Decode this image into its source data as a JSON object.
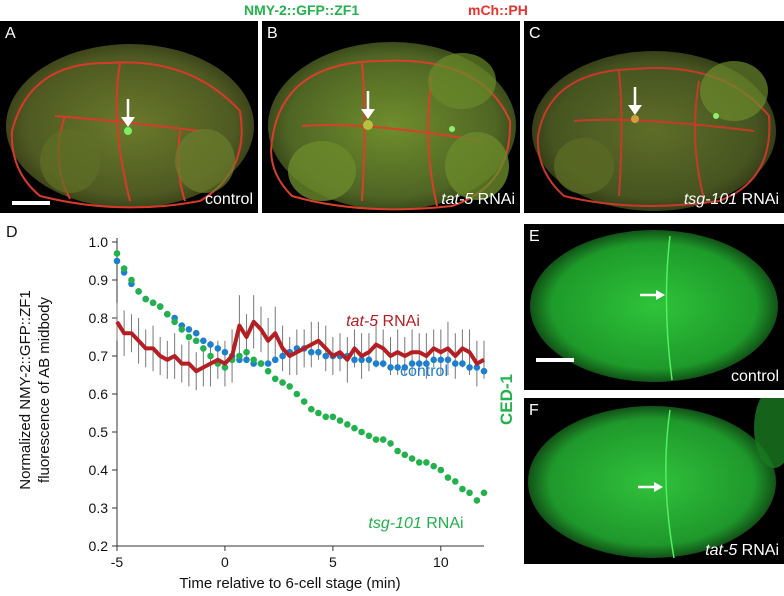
{
  "header": {
    "green_channel": "NMY-2::GFP::ZF1",
    "red_channel": "mCh::PH"
  },
  "colors": {
    "green_channel": "#23b24b",
    "red_channel": "#e8322b",
    "control": "#1f7fcf",
    "tat5": "#b51e22",
    "tsg101": "#23b14b"
  },
  "panels": {
    "A": {
      "letter": "A",
      "caption": "control"
    },
    "B": {
      "letter": "B",
      "gene": "tat-5",
      "suffix": " RNAi"
    },
    "C": {
      "letter": "C",
      "gene": "tsg-101",
      "suffix": " RNAi"
    },
    "D": {
      "letter": "D"
    },
    "E": {
      "letter": "E",
      "caption": "control"
    },
    "F": {
      "letter": "F",
      "gene": "tat-5",
      "suffix": " RNAi"
    },
    "ced_label": "CED-1"
  },
  "chart_data": {
    "type": "scatter",
    "xlabel": "Time relative to 6-cell stage (min)",
    "ylabel_line1": "Normalized NMY-2::GFP::ZF1",
    "ylabel_line2": "fluorescence of AB midbody",
    "xlim": [
      -5,
      12
    ],
    "ylim": [
      0.2,
      1.0
    ],
    "xticks": [
      -5,
      0,
      5,
      10
    ],
    "yticks": [
      0.2,
      0.3,
      0.4,
      0.5,
      0.6,
      0.7,
      0.8,
      0.9,
      1.0
    ],
    "legend": {
      "tat5": {
        "gene": "tat-5",
        "suffix": " RNAi"
      },
      "control": "control",
      "tsg101": {
        "gene": "tsg-101",
        "suffix": " RNAi"
      }
    },
    "series": [
      {
        "name": "control",
        "style": "points",
        "x": [
          -5,
          -4.67,
          -4.33,
          -4,
          -3.67,
          -3.33,
          -3,
          -2.67,
          -2.33,
          -2,
          -1.67,
          -1.33,
          -1,
          -0.67,
          -0.33,
          0,
          0.33,
          0.67,
          1,
          1.33,
          1.67,
          2,
          2.33,
          2.67,
          3,
          3.33,
          3.67,
          4,
          4.33,
          4.67,
          5,
          5.33,
          5.67,
          6,
          6.33,
          6.67,
          7,
          7.33,
          7.67,
          8,
          8.33,
          8.67,
          9,
          9.33,
          9.67,
          10,
          10.33,
          10.67,
          11,
          11.33,
          11.67,
          12
        ],
        "y": [
          0.95,
          0.92,
          0.89,
          0.87,
          0.85,
          0.84,
          0.83,
          0.81,
          0.8,
          0.78,
          0.77,
          0.76,
          0.74,
          0.73,
          0.72,
          0.71,
          0.7,
          0.69,
          0.69,
          0.68,
          0.68,
          0.68,
          0.69,
          0.7,
          0.71,
          0.72,
          0.72,
          0.71,
          0.71,
          0.7,
          0.7,
          0.7,
          0.7,
          0.69,
          0.69,
          0.69,
          0.68,
          0.68,
          0.67,
          0.67,
          0.67,
          0.68,
          0.68,
          0.68,
          0.69,
          0.69,
          0.69,
          0.68,
          0.68,
          0.67,
          0.67,
          0.66
        ]
      },
      {
        "name": "tsg-101 RNAi",
        "style": "points",
        "x": [
          -5,
          -4.67,
          -4.33,
          -4,
          -3.67,
          -3.33,
          -3,
          -2.67,
          -2.33,
          -2,
          -1.67,
          -1.33,
          -1,
          -0.67,
          -0.33,
          0,
          0.33,
          0.67,
          1,
          1.33,
          1.67,
          2,
          2.33,
          2.67,
          3,
          3.33,
          3.67,
          4,
          4.33,
          4.67,
          5,
          5.33,
          5.67,
          6,
          6.33,
          6.67,
          7,
          7.33,
          7.67,
          8,
          8.33,
          8.67,
          9,
          9.33,
          9.67,
          10,
          10.33,
          10.67,
          11,
          11.33,
          11.67,
          12
        ],
        "y": [
          0.97,
          0.93,
          0.9,
          0.87,
          0.85,
          0.84,
          0.83,
          0.81,
          0.79,
          0.77,
          0.75,
          0.74,
          0.72,
          0.7,
          0.68,
          0.67,
          0.69,
          0.7,
          0.71,
          0.69,
          0.68,
          0.66,
          0.64,
          0.63,
          0.62,
          0.6,
          0.58,
          0.56,
          0.55,
          0.54,
          0.54,
          0.53,
          0.52,
          0.51,
          0.5,
          0.49,
          0.48,
          0.48,
          0.47,
          0.45,
          0.44,
          0.43,
          0.42,
          0.42,
          0.41,
          0.4,
          0.38,
          0.37,
          0.35,
          0.34,
          0.32,
          0.34
        ]
      },
      {
        "name": "tat-5 RNAi",
        "style": "line",
        "x": [
          -5,
          -4.67,
          -4.33,
          -4,
          -3.67,
          -3.33,
          -3,
          -2.67,
          -2.33,
          -2,
          -1.67,
          -1.33,
          -1,
          -0.67,
          -0.33,
          0,
          0.33,
          0.67,
          1,
          1.33,
          1.67,
          2,
          2.33,
          2.67,
          3,
          3.33,
          3.67,
          4,
          4.33,
          4.67,
          5,
          5.33,
          5.67,
          6,
          6.33,
          6.67,
          7,
          7.33,
          7.67,
          8,
          8.33,
          8.67,
          9,
          9.33,
          9.67,
          10,
          10.33,
          10.67,
          11,
          11.33,
          11.67,
          12
        ],
        "y": [
          0.79,
          0.76,
          0.76,
          0.74,
          0.72,
          0.72,
          0.7,
          0.69,
          0.7,
          0.68,
          0.68,
          0.66,
          0.67,
          0.68,
          0.69,
          0.68,
          0.7,
          0.78,
          0.75,
          0.79,
          0.77,
          0.74,
          0.76,
          0.72,
          0.7,
          0.71,
          0.72,
          0.73,
          0.74,
          0.72,
          0.7,
          0.71,
          0.69,
          0.72,
          0.7,
          0.71,
          0.73,
          0.72,
          0.7,
          0.71,
          0.7,
          0.71,
          0.71,
          0.7,
          0.72,
          0.71,
          0.72,
          0.7,
          0.72,
          0.71,
          0.68,
          0.69
        ],
        "err": [
          0.05,
          0.06,
          0.05,
          0.06,
          0.05,
          0.06,
          0.05,
          0.05,
          0.06,
          0.05,
          0.06,
          0.05,
          0.05,
          0.06,
          0.05,
          0.06,
          0.07,
          0.08,
          0.06,
          0.07,
          0.06,
          0.06,
          0.07,
          0.06,
          0.05,
          0.06,
          0.05,
          0.06,
          0.05,
          0.06,
          0.05,
          0.05,
          0.06,
          0.05,
          0.06,
          0.05,
          0.06,
          0.05,
          0.05,
          0.06,
          0.05,
          0.06,
          0.05,
          0.06,
          0.05,
          0.06,
          0.07,
          0.06,
          0.05,
          0.06,
          0.06,
          0.05
        ]
      }
    ]
  }
}
